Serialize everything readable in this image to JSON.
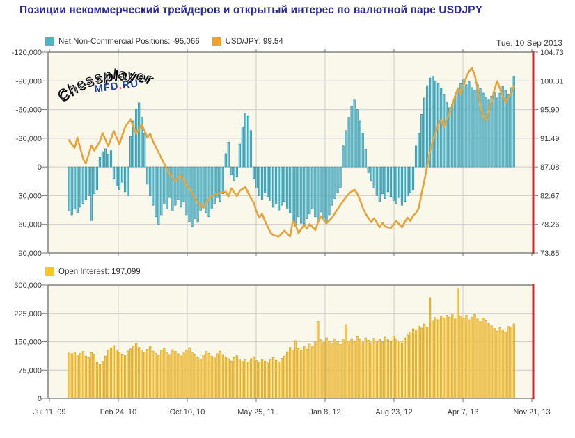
{
  "title": "Позиции некоммерческий трейдеров и открытый интерес по валютной паре USDJPY",
  "date_label": "Tue, 10 Sep 2013",
  "watermark": {
    "arc_text": "Chessplayer",
    "sub_text": "MFD",
    "sub_dot": ".",
    "sub_text2": "RU"
  },
  "colors": {
    "teal_fill": "#76c7d5",
    "teal_stroke": "#2f96ab",
    "orange_line": "#e7a33b",
    "yellow_fill": "#fcd14d",
    "yellow_stroke": "#d9a52c",
    "legend_teal": "#4cb4c4",
    "legend_orange": "#f0a02c",
    "legend_yellow": "#fcc51e",
    "plot_bg": "#faf7eb",
    "grid": "#cccccc",
    "border": "#8a8a8a",
    "right_border": "#cc2b2b",
    "title": "#2b2b90",
    "axis_text": "#3d3d3d",
    "watermark_blue": "#1c3f9f",
    "watermark_red": "#cf2020"
  },
  "x_axis": {
    "labels": [
      "Jul 11, 09",
      "Feb 24, 10",
      "Oct 10, 10",
      "May 25, 11",
      "Jan 8, 12",
      "Aug 23, 12",
      "Apr 7, 13",
      "Nov 21, 13"
    ]
  },
  "chart_data": [
    {
      "type": "bar",
      "name": "net-noncommercial-positions",
      "legend": [
        {
          "label": "Net Non-Commercial Positions: -95,066",
          "color_key": "legend_teal"
        },
        {
          "label": "USD/JPY: 99.54",
          "color_key": "legend_orange"
        }
      ],
      "current_value": -95066,
      "y_left": {
        "ticks": [
          "-120,000",
          "-90,000",
          "-60,000",
          "-30,000",
          "0",
          "30,000",
          "60,000",
          "90,000"
        ],
        "min": -120000,
        "max": 90000,
        "inverted": true
      },
      "y_right": {
        "ticks": [
          "104.73",
          "100.31",
          "95.90",
          "91.49",
          "87.08",
          "82.67",
          "78.26",
          "73.85"
        ],
        "min": 73.85,
        "max": 104.73
      },
      "bars_thousands": [
        46,
        50,
        44,
        48,
        42,
        38,
        34,
        30,
        56,
        28,
        24,
        -10,
        -16,
        -19,
        -13,
        -17,
        12,
        20,
        24,
        16,
        26,
        30,
        -32,
        -48,
        -60,
        -67,
        -52,
        -35,
        18,
        30,
        40,
        52,
        60,
        50,
        38,
        44,
        32,
        46,
        40,
        34,
        42,
        36,
        50,
        57,
        62,
        54,
        58,
        46,
        40,
        48,
        52,
        44,
        38,
        32,
        36,
        28,
        -14,
        -26,
        8,
        14,
        10,
        -24,
        -42,
        -56,
        -53,
        -38,
        12,
        22,
        30,
        34,
        27,
        31,
        35,
        42,
        38,
        45,
        40,
        36,
        43,
        48,
        57,
        62,
        52,
        59,
        63,
        54,
        49,
        44,
        52,
        58,
        47,
        54,
        59,
        50,
        40,
        33,
        27,
        22,
        -22,
        -38,
        -52,
        -63,
        -70,
        -60,
        -48,
        -35,
        -18,
        6,
        14,
        22,
        30,
        36,
        28,
        33,
        26,
        31,
        35,
        38,
        32,
        40,
        36,
        30,
        27,
        24,
        -22,
        -35,
        -55,
        -72,
        -85,
        -93,
        -95,
        -90,
        -87,
        -82,
        -76,
        -68,
        -62,
        -66,
        -74,
        -81,
        -87,
        -92,
        -86,
        -89,
        -83,
        -80,
        -86,
        -82,
        -77,
        -73,
        -70,
        -74,
        -78,
        -72,
        -77,
        -84,
        -80,
        -76,
        -83,
        -95
      ],
      "line": {
        "name": "USD/JPY",
        "current": 99.54,
        "anchors": [
          [
            0,
            91.2
          ],
          [
            2,
            90.0
          ],
          [
            3,
            91.6
          ],
          [
            5,
            88.4
          ],
          [
            6,
            87.6
          ],
          [
            8,
            90.4
          ],
          [
            9,
            89.6
          ],
          [
            11,
            91.0
          ],
          [
            12,
            92.3
          ],
          [
            14,
            90.3
          ],
          [
            16,
            92.6
          ],
          [
            18,
            90.6
          ],
          [
            20,
            93.2
          ],
          [
            22,
            94.4
          ],
          [
            24,
            92.2
          ],
          [
            26,
            93.6
          ],
          [
            28,
            91.6
          ],
          [
            29,
            92.2
          ],
          [
            30,
            91.0
          ],
          [
            32,
            89.3
          ],
          [
            34,
            87.6
          ],
          [
            36,
            86.0
          ],
          [
            38,
            84.9
          ],
          [
            40,
            85.9
          ],
          [
            42,
            84.3
          ],
          [
            44,
            83.1
          ],
          [
            46,
            81.6
          ],
          [
            48,
            80.8
          ],
          [
            50,
            82.3
          ],
          [
            52,
            82.9
          ],
          [
            54,
            83.1
          ],
          [
            56,
            83.3
          ],
          [
            57,
            82.5
          ],
          [
            58,
            83.8
          ],
          [
            60,
            82.6
          ],
          [
            61,
            83.4
          ],
          [
            63,
            84.0
          ],
          [
            65,
            82.3
          ],
          [
            66,
            81.6
          ],
          [
            67,
            80.2
          ],
          [
            68,
            79.3
          ],
          [
            69,
            79.9
          ],
          [
            70,
            78.8
          ],
          [
            72,
            77.0
          ],
          [
            73,
            76.6
          ],
          [
            75,
            76.4
          ],
          [
            77,
            77.3
          ],
          [
            79,
            76.4
          ],
          [
            80,
            78.8
          ],
          [
            81,
            78.1
          ],
          [
            82,
            76.9
          ],
          [
            84,
            78.2
          ],
          [
            85,
            77.6
          ],
          [
            86,
            78.3
          ],
          [
            88,
            77.4
          ],
          [
            89,
            78.6
          ],
          [
            90,
            79.5
          ],
          [
            92,
            78.4
          ],
          [
            94,
            79.3
          ],
          [
            96,
            80.6
          ],
          [
            98,
            81.9
          ],
          [
            100,
            83.0
          ],
          [
            102,
            83.6
          ],
          [
            103,
            83.0
          ],
          [
            104,
            82.0
          ],
          [
            105,
            80.8
          ],
          [
            106,
            79.9
          ],
          [
            108,
            78.6
          ],
          [
            109,
            79.2
          ],
          [
            111,
            77.8
          ],
          [
            112,
            78.5
          ],
          [
            113,
            77.9
          ],
          [
            115,
            77.7
          ],
          [
            117,
            78.8
          ],
          [
            119,
            77.8
          ],
          [
            120,
            78.6
          ],
          [
            121,
            79.3
          ],
          [
            122,
            78.8
          ],
          [
            123,
            79.6
          ],
          [
            124,
            80.0
          ],
          [
            125,
            80.8
          ],
          [
            126,
            83.0
          ],
          [
            127,
            85.0
          ],
          [
            128,
            87.2
          ],
          [
            129,
            89.4
          ],
          [
            130,
            91.0
          ],
          [
            131,
            92.2
          ],
          [
            132,
            93.6
          ],
          [
            133,
            94.4
          ],
          [
            134,
            93.2
          ],
          [
            135,
            94.4
          ],
          [
            136,
            95.3
          ],
          [
            137,
            96.6
          ],
          [
            138,
            98.0
          ],
          [
            139,
            99.2
          ],
          [
            140,
            98.3
          ],
          [
            141,
            99.6
          ],
          [
            142,
            100.9
          ],
          [
            143,
            101.8
          ],
          [
            144,
            102.3
          ],
          [
            145,
            101.2
          ],
          [
            146,
            99.2
          ],
          [
            147,
            96.6
          ],
          [
            148,
            94.8
          ],
          [
            149,
            94.3
          ],
          [
            150,
            95.6
          ],
          [
            151,
            97.2
          ],
          [
            152,
            98.9
          ],
          [
            153,
            100.3
          ],
          [
            154,
            99.2
          ],
          [
            155,
            97.9
          ],
          [
            156,
            97.0
          ],
          [
            157,
            97.9
          ],
          [
            158,
            98.4
          ],
          [
            159,
            99.5
          ]
        ]
      }
    },
    {
      "type": "bar",
      "name": "open-interest",
      "legend": [
        {
          "label": "Open Interest: 197,099",
          "color_key": "legend_yellow"
        }
      ],
      "current_value": 197099,
      "y_left": {
        "ticks": [
          "300,000",
          "225,000",
          "150,000",
          "75,000",
          "0"
        ],
        "min": 0,
        "max": 300000
      },
      "bars_thousands": [
        120,
        118,
        122,
        115,
        119,
        124,
        112,
        108,
        121,
        117,
        95,
        90,
        98,
        112,
        126,
        133,
        140,
        128,
        122,
        117,
        113,
        125,
        131,
        138,
        146,
        135,
        128,
        122,
        130,
        137,
        125,
        119,
        114,
        126,
        133,
        121,
        116,
        129,
        124,
        118,
        112,
        120,
        127,
        134,
        122,
        117,
        108,
        103,
        115,
        124,
        119,
        112,
        107,
        118,
        125,
        116,
        110,
        105,
        99,
        108,
        113,
        104,
        98,
        102,
        96,
        105,
        110,
        100,
        96,
        104,
        99,
        94,
        103,
        108,
        101,
        97,
        106,
        112,
        123,
        135,
        128,
        153,
        132,
        126,
        138,
        130,
        144,
        137,
        150,
        204,
        155,
        148,
        160,
        152,
        146,
        158,
        150,
        143,
        155,
        195,
        152,
        158,
        150,
        163,
        156,
        148,
        160,
        154,
        147,
        159,
        152,
        156,
        149,
        162,
        155,
        150,
        165,
        158,
        152,
        147,
        160,
        168,
        176,
        184,
        179,
        191,
        186,
        197,
        189,
        267,
        206,
        214,
        208,
        218,
        212,
        220,
        215,
        224,
        210,
        291,
        218,
        212,
        220,
        208,
        215,
        222,
        210,
        205,
        212,
        207,
        198,
        192,
        185,
        178,
        188,
        182,
        176,
        190,
        186,
        197
      ]
    }
  ]
}
